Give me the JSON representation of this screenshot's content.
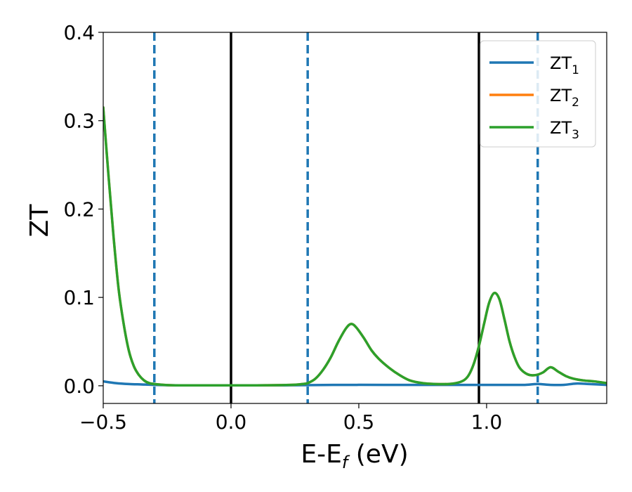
{
  "chart_data": {
    "type": "line",
    "xlabel_main": "E-E",
    "xlabel_sub": "f",
    "xlabel_unit": " (eV)",
    "ylabel": "ZT",
    "xlim": [
      -0.5,
      1.47
    ],
    "ylim": [
      -0.02,
      0.4
    ],
    "xticks": [
      -0.5,
      0.0,
      0.5,
      1.0
    ],
    "xtick_labels": [
      "−0.5",
      "0.0",
      "0.5",
      "1.0"
    ],
    "yticks": [
      0.0,
      0.1,
      0.2,
      0.3,
      0.4
    ],
    "ytick_labels": [
      "0.0",
      "0.1",
      "0.2",
      "0.3",
      "0.4"
    ],
    "grid": false,
    "legend_position": "top-right",
    "vlines": [
      {
        "x": -0.3,
        "style": "dashed",
        "color": "#1f77b4"
      },
      {
        "x": 0.0,
        "style": "solid",
        "color": "#000000"
      },
      {
        "x": 0.3,
        "style": "dashed",
        "color": "#1f77b4"
      },
      {
        "x": 0.97,
        "style": "solid",
        "color": "#000000"
      },
      {
        "x": 1.2,
        "style": "dashed",
        "color": "#1f77b4"
      }
    ],
    "series": [
      {
        "name_main": "ZT",
        "name_sub": "1",
        "color": "#1f77b4",
        "x": [
          -0.5,
          -0.45,
          -0.4,
          -0.35,
          -0.3,
          -0.2,
          0.0,
          0.2,
          0.4,
          0.6,
          0.8,
          1.0,
          1.1,
          1.15,
          1.2,
          1.25,
          1.3,
          1.35,
          1.4,
          1.47
        ],
        "y": [
          0.005,
          0.003,
          0.002,
          0.0015,
          0.001,
          0.0005,
          0.0005,
          0.0005,
          0.001,
          0.001,
          0.001,
          0.001,
          0.001,
          0.001,
          0.002,
          0.001,
          0.001,
          0.0025,
          0.002,
          0.001
        ]
      },
      {
        "name_main": "ZT",
        "name_sub": "2",
        "color": "#ff7f0e",
        "x": [
          -0.5,
          -0.48,
          -0.46,
          -0.44,
          -0.42,
          -0.4,
          -0.38,
          -0.36,
          -0.34,
          -0.32,
          -0.3,
          -0.25,
          -0.2,
          -0.1,
          0.0,
          0.1,
          0.2,
          0.25,
          0.28,
          0.3,
          0.33,
          0.36,
          0.39,
          0.42,
          0.45,
          0.47,
          0.49,
          0.52,
          0.55,
          0.58,
          0.62,
          0.66,
          0.7,
          0.75,
          0.8,
          0.85,
          0.88,
          0.91,
          0.93,
          0.95,
          0.97,
          0.99,
          1.01,
          1.03,
          1.05,
          1.07,
          1.09,
          1.11,
          1.13,
          1.16,
          1.19,
          1.22,
          1.25,
          1.28,
          1.31,
          1.34,
          1.38,
          1.42,
          1.47
        ],
        "y": [
          0.315,
          0.24,
          0.17,
          0.11,
          0.07,
          0.04,
          0.022,
          0.012,
          0.006,
          0.003,
          0.002,
          0.0008,
          0.0005,
          0.0005,
          0.0005,
          0.0005,
          0.0008,
          0.0012,
          0.002,
          0.003,
          0.008,
          0.018,
          0.032,
          0.05,
          0.065,
          0.07,
          0.066,
          0.054,
          0.04,
          0.03,
          0.02,
          0.012,
          0.006,
          0.003,
          0.002,
          0.002,
          0.003,
          0.006,
          0.012,
          0.025,
          0.045,
          0.07,
          0.094,
          0.105,
          0.098,
          0.075,
          0.05,
          0.032,
          0.02,
          0.013,
          0.012,
          0.015,
          0.021,
          0.016,
          0.011,
          0.008,
          0.006,
          0.005,
          0.003
        ]
      },
      {
        "name_main": "ZT",
        "name_sub": "3",
        "color": "#2ca02c",
        "x": [
          -0.5,
          -0.48,
          -0.46,
          -0.44,
          -0.42,
          -0.4,
          -0.38,
          -0.36,
          -0.34,
          -0.32,
          -0.3,
          -0.25,
          -0.2,
          -0.1,
          0.0,
          0.1,
          0.2,
          0.25,
          0.28,
          0.3,
          0.33,
          0.36,
          0.39,
          0.42,
          0.45,
          0.47,
          0.49,
          0.52,
          0.55,
          0.58,
          0.62,
          0.66,
          0.7,
          0.75,
          0.8,
          0.85,
          0.88,
          0.91,
          0.93,
          0.95,
          0.97,
          0.99,
          1.01,
          1.03,
          1.05,
          1.07,
          1.09,
          1.11,
          1.13,
          1.16,
          1.19,
          1.22,
          1.25,
          1.28,
          1.31,
          1.34,
          1.38,
          1.42,
          1.47
        ],
        "y": [
          0.315,
          0.24,
          0.17,
          0.11,
          0.07,
          0.04,
          0.022,
          0.012,
          0.006,
          0.003,
          0.002,
          0.0008,
          0.0005,
          0.0005,
          0.0005,
          0.0005,
          0.0008,
          0.0012,
          0.002,
          0.003,
          0.008,
          0.018,
          0.032,
          0.05,
          0.065,
          0.07,
          0.066,
          0.054,
          0.04,
          0.03,
          0.02,
          0.012,
          0.006,
          0.003,
          0.002,
          0.002,
          0.003,
          0.006,
          0.012,
          0.025,
          0.045,
          0.07,
          0.094,
          0.105,
          0.098,
          0.075,
          0.05,
          0.032,
          0.02,
          0.013,
          0.012,
          0.015,
          0.021,
          0.016,
          0.011,
          0.008,
          0.006,
          0.005,
          0.003
        ]
      }
    ]
  }
}
